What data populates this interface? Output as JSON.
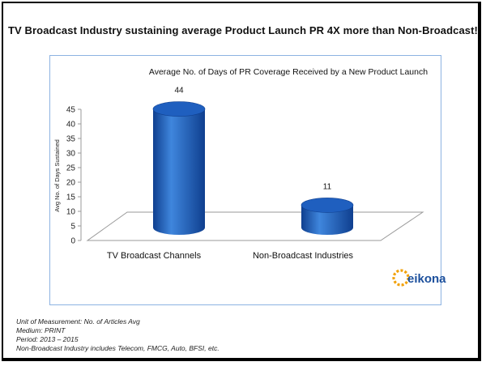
{
  "headline": "TV Broadcast Industry sustaining average Product Launch PR 4X more than Non-Broadcast!",
  "logo_text": "eikona",
  "notes": [
    "Unit of Measurement: No. of Articles Avg",
    "Medium: PRINT",
    "Period: 2013 – 2015",
    "Non-Broadcast Industry includes Telecom, FMCG, Auto, BFSI, etc."
  ],
  "colors": {
    "bar": "#1f5fbf",
    "bar_dark": "#0f3f8f",
    "bar_light": "#3f86dd",
    "chart_border": "#8db3e2",
    "logo_orange": "#f2a20c",
    "logo_blue": "#1b4f9c"
  },
  "chart_data": {
    "type": "bar",
    "style": "3d-cylinder",
    "title": "Average No. of Days of PR Coverage Received by a New Product Launch",
    "xlabel": "",
    "ylabel": "Avg No. of Days Sustained",
    "categories": [
      "TV Broadcast Channels",
      "Non-Broadcast Industries"
    ],
    "values": [
      44,
      11
    ],
    "data_labels": [
      "44",
      "11"
    ],
    "ylim": [
      0,
      45
    ],
    "yticks": [
      0,
      5,
      10,
      15,
      20,
      25,
      30,
      35,
      40,
      45
    ],
    "grid": false,
    "legend": "none"
  }
}
